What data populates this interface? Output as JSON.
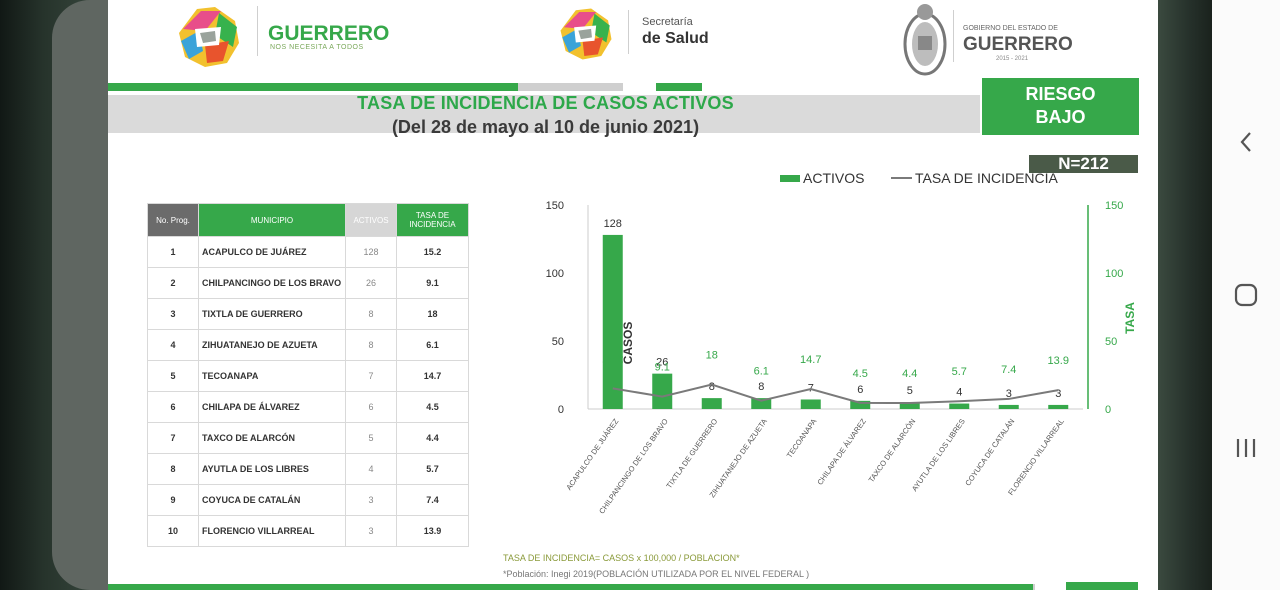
{
  "header": {
    "left_logo_title": "GUERRERO",
    "left_logo_subtitle": "NOS NECESITA A TODOS",
    "center_logo_line1": "Secretaría",
    "center_logo_line2": "de Salud",
    "right_logo_line1": "GOBIERNO DEL ESTADO DE",
    "right_logo_line2": "GUERRERO",
    "right_logo_line3": "2015 - 2021"
  },
  "title": {
    "line1": "TASA DE INCIDENCIA DE CASOS ACTIVOS",
    "line2": "(Del 28 de mayo al 10 de junio 2021)"
  },
  "risk": {
    "line1": "RIESGO",
    "line2": "BAJO"
  },
  "n_label": "N=212",
  "colors": {
    "green": "#36a84a",
    "grey": "#d6d6d6",
    "dark_grey": "#6b6b6b",
    "line": "#7a7a7a"
  },
  "table": {
    "headers": [
      "No. Prog.",
      "MUNICIPIO",
      "ACTIVOS",
      "TASA DE INCIDENCIA"
    ],
    "rows": [
      {
        "no": "1",
        "municipio": "ACAPULCO DE JUÁREZ",
        "activos": "128",
        "tasa": "15.2"
      },
      {
        "no": "2",
        "municipio": "CHILPANCINGO DE LOS BRAVO",
        "activos": "26",
        "tasa": "9.1"
      },
      {
        "no": "3",
        "municipio": "TIXTLA DE GUERRERO",
        "activos": "8",
        "tasa": "18"
      },
      {
        "no": "4",
        "municipio": "ZIHUATANEJO DE AZUETA",
        "activos": "8",
        "tasa": "6.1"
      },
      {
        "no": "5",
        "municipio": "TECOANAPA",
        "activos": "7",
        "tasa": "14.7"
      },
      {
        "no": "6",
        "municipio": "CHILAPA DE ÁLVAREZ",
        "activos": "6",
        "tasa": "4.5"
      },
      {
        "no": "7",
        "municipio": "TAXCO DE ALARCÓN",
        "activos": "5",
        "tasa": "4.4"
      },
      {
        "no": "8",
        "municipio": "AYUTLA DE LOS LIBRES",
        "activos": "4",
        "tasa": "5.7"
      },
      {
        "no": "9",
        "municipio": "COYUCA DE CATALÁN",
        "activos": "3",
        "tasa": "7.4"
      },
      {
        "no": "10",
        "municipio": "FLORENCIO VILLARREAL",
        "activos": "3",
        "tasa": "13.9"
      }
    ]
  },
  "chart_data": {
    "type": "bar",
    "legend": [
      "ACTIVOS",
      "TASA DE INCIDENCIA"
    ],
    "categories": [
      "ACAPULCO DE JUÁREZ",
      "CHILPANCINGO DE LOS BRAVO",
      "TIXTLA DE GUERRERO",
      "ZIHUATANEJO DE AZUETA",
      "TECOANAPA",
      "CHILAPA DE ÁLVAREZ",
      "TAXCO DE ALARCÓN",
      "AYUTLA DE LOS LIBRES",
      "COYUCA DE CATALÁN",
      "FLORENCIO VILLARREAL"
    ],
    "series": [
      {
        "name": "ACTIVOS",
        "type": "bar",
        "axis": "left",
        "values": [
          128,
          26,
          8,
          8,
          7,
          6,
          5,
          4,
          3,
          3
        ]
      },
      {
        "name": "TASA DE INCIDENCIA",
        "type": "line",
        "axis": "right",
        "values": [
          15.2,
          9.1,
          18,
          6.1,
          14.7,
          4.5,
          4.4,
          5.7,
          7.4,
          13.9
        ]
      }
    ],
    "ylabel": "CASOS",
    "y2label": "TASA",
    "ylim": [
      0,
      150
    ],
    "y2lim": [
      0,
      150
    ],
    "yticks": [
      "0",
      "50",
      "100",
      "150"
    ],
    "y2ticks": [
      "0",
      "50",
      "100",
      "150"
    ]
  },
  "footnotes": {
    "formula": "TASA DE INCIDENCIA= CASOS x 100,000 / POBLACION*",
    "source": "*Población: Inegi 2019(POBLACIÓN UTILIZADA POR EL NIVEL FEDERAL )"
  }
}
